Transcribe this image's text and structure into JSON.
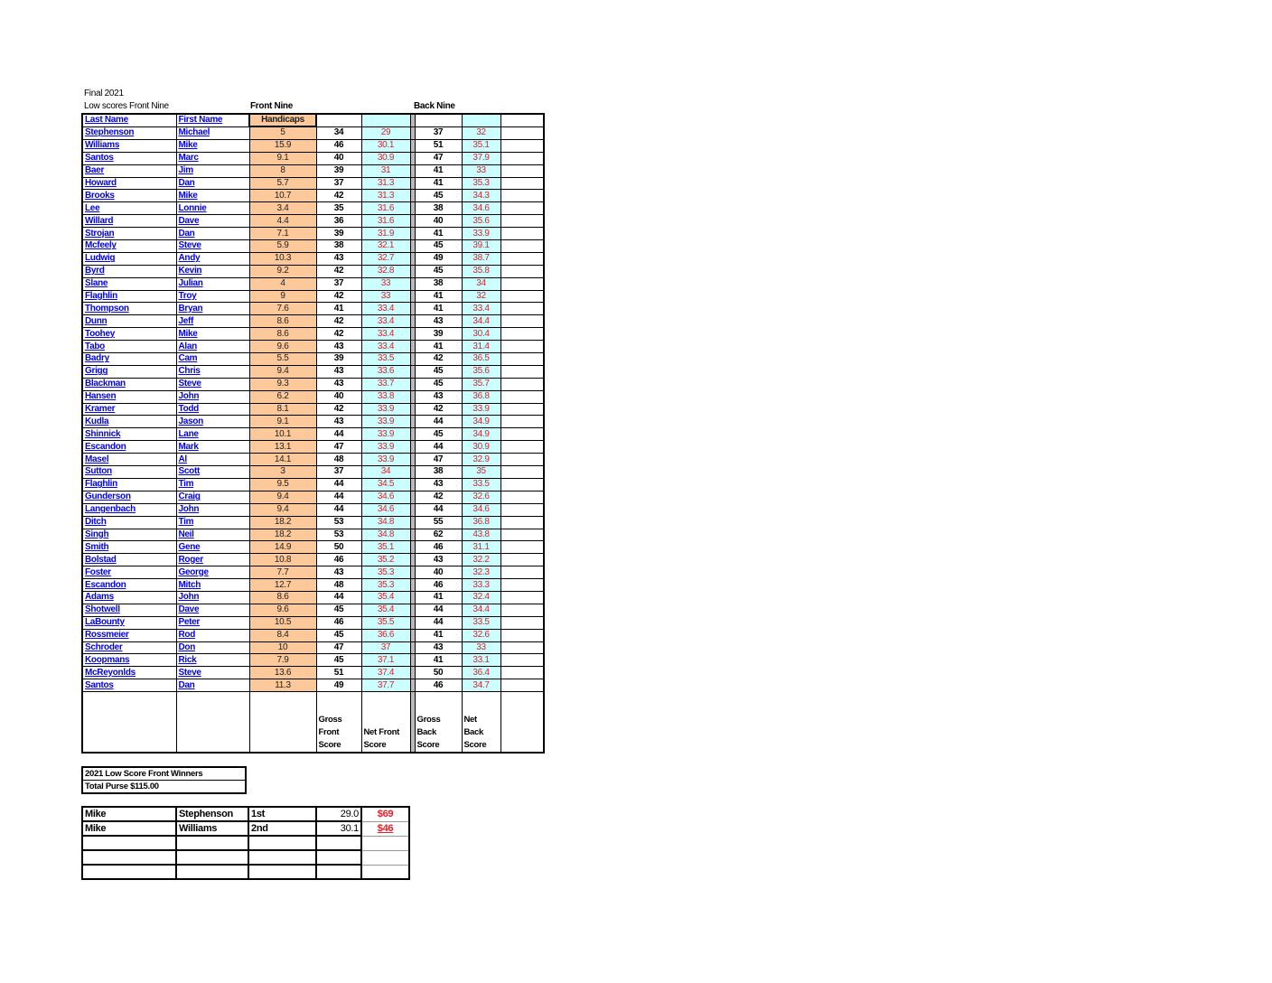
{
  "title": "Final 2021",
  "subtitle": "Low scores Front Nine",
  "section_front": "Front Nine",
  "section_back": "Back Nine",
  "headers": {
    "last_name": "Last Name",
    "first_name": "First Name",
    "handicaps": "Handicaps"
  },
  "footer_labels": {
    "gross_front": "Gross Front Score",
    "net_front": "Net Front Score",
    "gross_back": "Gross Back Score",
    "net_back": "Net Back Score"
  },
  "colors": {
    "name_link": "#0000ee",
    "handicap_fill": "#fdc99a",
    "net_fill": "#ccffff",
    "net_text": "#e0202a"
  },
  "players": [
    {
      "last": "Stephenson",
      "first": "Michael",
      "hc": "5",
      "gf": "34",
      "nf": "29",
      "gb": "37",
      "nb": "32"
    },
    {
      "last": "Williams",
      "first": "Mike",
      "hc": "15.9",
      "gf": "46",
      "nf": "30.1",
      "gb": "51",
      "nb": "35.1"
    },
    {
      "last": "Santos",
      "first": "Marc",
      "hc": "9.1",
      "gf": "40",
      "nf": "30.9",
      "gb": "47",
      "nb": "37.9"
    },
    {
      "last": "Baer",
      "first": "Jim",
      "hc": "8",
      "gf": "39",
      "nf": "31",
      "gb": "41",
      "nb": "33"
    },
    {
      "last": "Howard",
      "first": "Dan",
      "hc": "5.7",
      "gf": "37",
      "nf": "31.3",
      "gb": "41",
      "nb": "35.3"
    },
    {
      "last": "Brooks",
      "first": "Mike",
      "hc": "10.7",
      "gf": "42",
      "nf": "31.3",
      "gb": "45",
      "nb": "34.3"
    },
    {
      "last": "Lee",
      "first": "Lonnie",
      "hc": "3.4",
      "gf": "35",
      "nf": "31.6",
      "gb": "38",
      "nb": "34.6"
    },
    {
      "last": "Willard",
      "first": "Dave",
      "hc": "4.4",
      "gf": "36",
      "nf": "31.6",
      "gb": "40",
      "nb": "35.6"
    },
    {
      "last": "Strojan",
      "first": "Dan",
      "hc": "7.1",
      "gf": "39",
      "nf": "31.9",
      "gb": "41",
      "nb": "33.9"
    },
    {
      "last": "Mcfeely",
      "first": "Steve",
      "hc": "5.9",
      "gf": "38",
      "nf": "32.1",
      "gb": "45",
      "nb": "39.1"
    },
    {
      "last": "Ludwig",
      "first": "Andy",
      "hc": "10.3",
      "gf": "43",
      "nf": "32.7",
      "gb": "49",
      "nb": "38.7"
    },
    {
      "last": "Byrd",
      "first": "Kevin",
      "hc": "9.2",
      "gf": "42",
      "nf": "32.8",
      "gb": "45",
      "nb": "35.8"
    },
    {
      "last": "Slane",
      "first": "Julian",
      "hc": "4",
      "gf": "37",
      "nf": "33",
      "gb": "38",
      "nb": "34"
    },
    {
      "last": "Flaghlin",
      "first": "Troy",
      "hc": "9",
      "gf": "42",
      "nf": "33",
      "gb": "41",
      "nb": "32"
    },
    {
      "last": "Thompson",
      "first": "Bryan",
      "hc": "7.6",
      "gf": "41",
      "nf": "33.4",
      "gb": "41",
      "nb": "33.4"
    },
    {
      "last": "Dunn",
      "first": "Jeff",
      "hc": "8.6",
      "gf": "42",
      "nf": "33.4",
      "gb": "43",
      "nb": "34.4"
    },
    {
      "last": "Toohey",
      "first": "Mike",
      "hc": "8.6",
      "gf": "42",
      "nf": "33.4",
      "gb": "39",
      "nb": "30.4"
    },
    {
      "last": "Tabo",
      "first": "Alan",
      "hc": "9.6",
      "gf": "43",
      "nf": "33.4",
      "gb": "41",
      "nb": "31.4"
    },
    {
      "last": "Badry",
      "first": "Cam",
      "hc": "5.5",
      "gf": "39",
      "nf": "33.5",
      "gb": "42",
      "nb": "36.5"
    },
    {
      "last": "Grigg",
      "first": "Chris",
      "hc": "9.4",
      "gf": "43",
      "nf": "33.6",
      "gb": "45",
      "nb": "35.6"
    },
    {
      "last": "Blackman",
      "first": "Steve",
      "hc": "9.3",
      "gf": "43",
      "nf": "33.7",
      "gb": "45",
      "nb": "35.7"
    },
    {
      "last": "Hansen",
      "first": "John",
      "hc": "6.2",
      "gf": "40",
      "nf": "33.8",
      "gb": "43",
      "nb": "36.8"
    },
    {
      "last": "Kramer",
      "first": "Todd",
      "hc": "8.1",
      "gf": "42",
      "nf": "33.9",
      "gb": "42",
      "nb": "33.9"
    },
    {
      "last": "Kudla",
      "first": "Jason",
      "hc": "9.1",
      "gf": "43",
      "nf": "33.9",
      "gb": "44",
      "nb": "34.9"
    },
    {
      "last": "Shinnick",
      "first": "Lane",
      "hc": "10.1",
      "gf": "44",
      "nf": "33.9",
      "gb": "45",
      "nb": "34.9"
    },
    {
      "last": "Escandon",
      "first": "Mark",
      "hc": "13.1",
      "gf": "47",
      "nf": "33.9",
      "gb": "44",
      "nb": "30.9"
    },
    {
      "last": "Masel",
      "first": "Al",
      "hc": "14.1",
      "gf": "48",
      "nf": "33.9",
      "gb": "47",
      "nb": "32.9"
    },
    {
      "last": "Sutton",
      "first": "Scott",
      "hc": "3",
      "gf": "37",
      "nf": "34",
      "gb": "38",
      "nb": "35"
    },
    {
      "last": "Flaghlin",
      "first": "Tim",
      "hc": "9.5",
      "gf": "44",
      "nf": "34.5",
      "gb": "43",
      "nb": "33.5"
    },
    {
      "last": "Gunderson",
      "first": "Craig",
      "hc": "9.4",
      "gf": "44",
      "nf": "34.6",
      "gb": "42",
      "nb": "32.6"
    },
    {
      "last": "Langenbach",
      "first": "John",
      "hc": "9.4",
      "gf": "44",
      "nf": "34.6",
      "gb": "44",
      "nb": "34.6"
    },
    {
      "last": "Ditch",
      "first": "Tim",
      "hc": "18.2",
      "gf": "53",
      "nf": "34.8",
      "gb": "55",
      "nb": "36.8"
    },
    {
      "last": "Singh",
      "first": "Neil",
      "hc": "18.2",
      "gf": "53",
      "nf": "34.8",
      "gb": "62",
      "nb": "43.8"
    },
    {
      "last": "Smith",
      "first": "Gene",
      "hc": "14.9",
      "gf": "50",
      "nf": "35.1",
      "gb": "46",
      "nb": "31.1"
    },
    {
      "last": "Bolstad",
      "first": "Roger",
      "hc": "10.8",
      "gf": "46",
      "nf": "35.2",
      "gb": "43",
      "nb": "32.2"
    },
    {
      "last": "Foster",
      "first": "George",
      "hc": "7.7",
      "gf": "43",
      "nf": "35.3",
      "gb": "40",
      "nb": "32.3"
    },
    {
      "last": "Escandon",
      "first": "Mitch",
      "hc": "12.7",
      "gf": "48",
      "nf": "35.3",
      "gb": "46",
      "nb": "33.3"
    },
    {
      "last": "Adams",
      "first": "John",
      "hc": "8.6",
      "gf": "44",
      "nf": "35.4",
      "gb": "41",
      "nb": "32.4"
    },
    {
      "last": "Shotwell",
      "first": "Dave",
      "hc": "9.6",
      "gf": "45",
      "nf": "35.4",
      "gb": "44",
      "nb": "34.4"
    },
    {
      "last": "LaBounty",
      "first": "Peter",
      "hc": "10.5",
      "gf": "46",
      "nf": "35.5",
      "gb": "44",
      "nb": "33.5"
    },
    {
      "last": "Rossmeier",
      "first": "Rod",
      "hc": "8.4",
      "gf": "45",
      "nf": "36.6",
      "gb": "41",
      "nb": "32.6"
    },
    {
      "last": "Schroder",
      "first": "Don",
      "hc": "10",
      "gf": "47",
      "nf": "37",
      "gb": "43",
      "nb": "33"
    },
    {
      "last": "Koopmans",
      "first": "Rick",
      "hc": "7.9",
      "gf": "45",
      "nf": "37.1",
      "gb": "41",
      "nb": "33.1"
    },
    {
      "last": "McReyonlds",
      "first": "Steve",
      "hc": "13.6",
      "gf": "51",
      "nf": "37.4",
      "gb": "50",
      "nb": "36.4"
    },
    {
      "last": "Santos",
      "first": "Dan",
      "hc": "11.3",
      "gf": "49",
      "nf": "37.7",
      "gb": "46",
      "nb": "34.7"
    }
  ],
  "winners_title": "2021 Low Score Front Winners",
  "total_purse": "Total Purse $115.00",
  "winners": [
    {
      "first": "Mike",
      "last": "Stephenson",
      "place": "1st",
      "score": "29.0",
      "prize": "$69"
    },
    {
      "first": "Mike",
      "last": "Williams",
      "place": "2nd",
      "score": "30.1",
      "prize": "$46"
    }
  ]
}
